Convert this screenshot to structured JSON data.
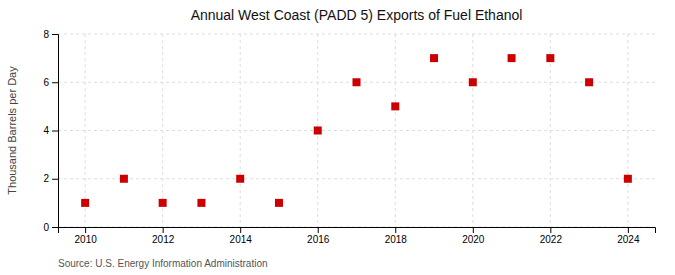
{
  "chart_data": {
    "type": "scatter",
    "title": "Annual West Coast (PADD 5) Exports of Fuel Ethanol",
    "ylabel": "Thousand Barrels per Day",
    "source": "Source: U.S. Energy Information Administration",
    "x": [
      2010,
      2011,
      2012,
      2013,
      2014,
      2015,
      2016,
      2017,
      2018,
      2019,
      2020,
      2021,
      2022,
      2023,
      2024
    ],
    "values": [
      1,
      2,
      1,
      1,
      2,
      1,
      4,
      6,
      5,
      7,
      6,
      7,
      7,
      6,
      2
    ],
    "color": "#cc0000",
    "marker": "square",
    "xlim": [
      2009.3,
      2024.7
    ],
    "ylim": [
      0,
      8
    ],
    "xticks": [
      2010,
      2012,
      2014,
      2016,
      2018,
      2020,
      2022,
      2024
    ],
    "yticks": [
      0,
      2,
      4,
      6,
      8
    ],
    "grid": true
  }
}
